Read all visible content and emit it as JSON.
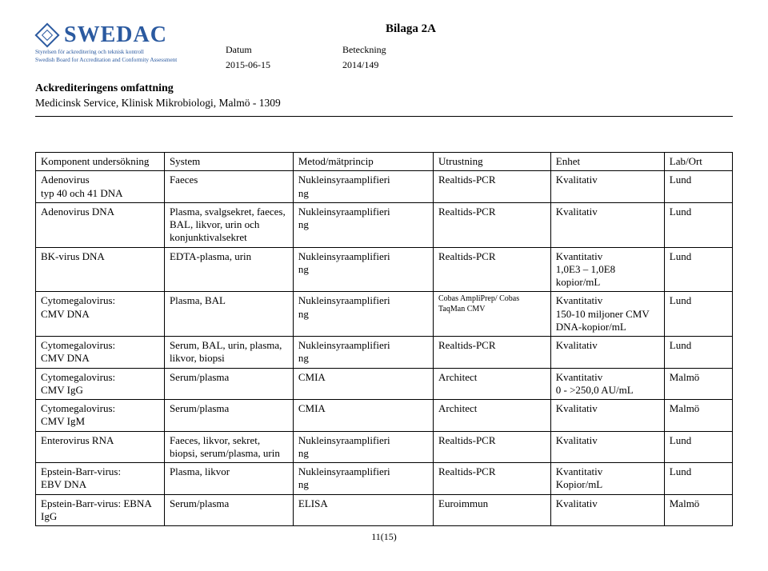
{
  "logo": {
    "name": "SWEDAC",
    "subtitle_sv": "Styrelsen för ackreditering och teknisk kontroll",
    "subtitle_en": "Swedish Board for Accreditation and Conformity Assessment"
  },
  "bilaga": "Bilaga 2A",
  "meta": {
    "datum_label": "Datum",
    "datum_value": "2015-06-15",
    "beteckning_label": "Beteckning",
    "beteckning_value": "2014/149"
  },
  "accredit": {
    "title": "Ackrediteringens omfattning",
    "sub": "Medicinsk Service, Klinisk Mikrobiologi, Malmö - 1309"
  },
  "table": {
    "headers": [
      "Komponent undersökning",
      "System",
      "Metod/mätprincip",
      "Utrustning",
      "Enhet",
      "Lab/Ort"
    ],
    "rows": [
      [
        "Adenovirus\ntyp 40 och 41 DNA",
        "Faeces",
        "Nukleinsyraamplifieri\nng",
        "Realtids-PCR",
        "Kvalitativ",
        "Lund"
      ],
      [
        "Adenovirus DNA",
        "Plasma, svalgsekret, faeces, BAL, likvor, urin och konjunktivalsekret",
        "Nukleinsyraamplifieri\nng",
        "Realtids-PCR",
        "Kvalitativ",
        "Lund"
      ],
      [
        "BK-virus DNA",
        "EDTA-plasma, urin",
        "Nukleinsyraamplifieri\nng",
        "Realtids-PCR",
        "Kvantitativ\n1,0E3 – 1,0E8 kopior/mL",
        "Lund"
      ],
      [
        "Cytomegalovirus:\nCMV DNA",
        "Plasma, BAL",
        "Nukleinsyraamplifieri\nng",
        "Cobas AmpliPrep/ Cobas TaqMan CMV",
        "Kvantitativ\n150-10 miljoner CMV DNA-kopior/mL",
        "Lund"
      ],
      [
        "Cytomegalovirus:\nCMV DNA",
        "Serum, BAL, urin, plasma, likvor, biopsi",
        "Nukleinsyraamplifieri\nng",
        "Realtids-PCR",
        "Kvalitativ",
        "Lund"
      ],
      [
        "Cytomegalovirus:\nCMV IgG",
        "Serum/plasma",
        "CMIA",
        "Architect",
        "Kvantitativ\n0 - >250,0 AU/mL",
        "Malmö"
      ],
      [
        "Cytomegalovirus:\nCMV IgM",
        "Serum/plasma",
        "CMIA",
        "Architect",
        "Kvalitativ",
        "Malmö"
      ],
      [
        "Enterovirus RNA",
        "Faeces, likvor, sekret, biopsi, serum/plasma, urin",
        "Nukleinsyraamplifieri\nng",
        "Realtids-PCR",
        "Kvalitativ",
        "Lund"
      ],
      [
        "Epstein-Barr-virus:\nEBV DNA",
        "Plasma, likvor",
        "Nukleinsyraamplifieri\nng",
        "Realtids-PCR",
        "Kvantitativ\nKopior/mL",
        "Lund"
      ],
      [
        "Epstein-Barr-virus: EBNA IgG",
        "Serum/plasma",
        "ELISA",
        "Euroimmun",
        "Kvalitativ",
        "Malmö"
      ]
    ],
    "small_cell": {
      "row": 3,
      "col": 3
    }
  },
  "footer": "11(15)"
}
